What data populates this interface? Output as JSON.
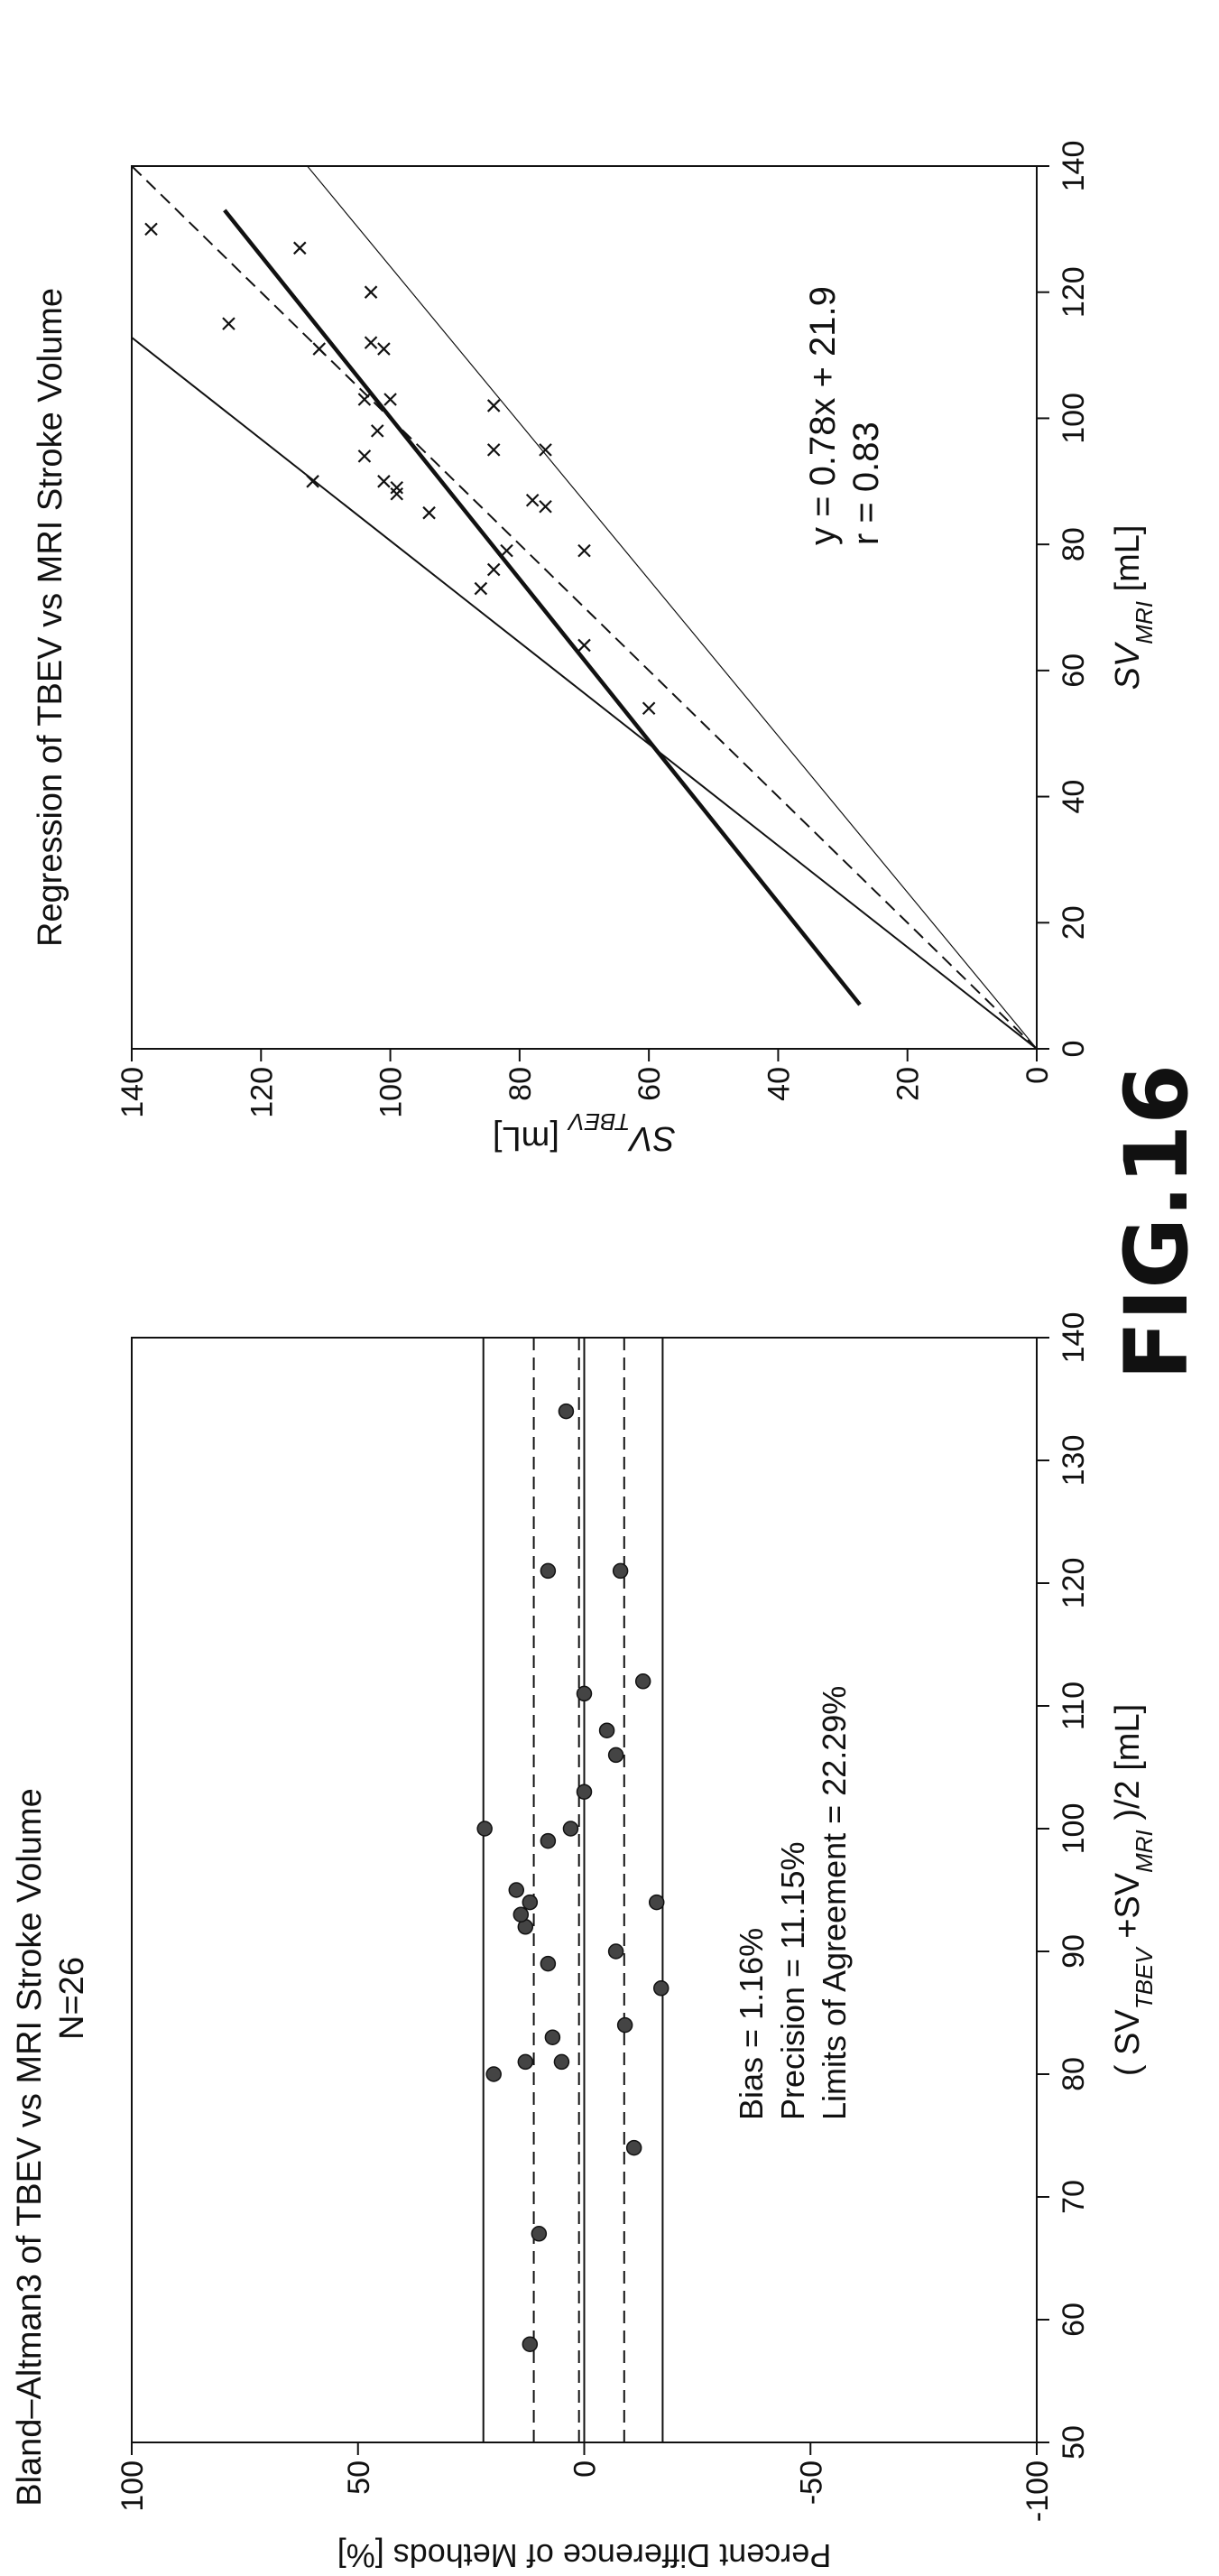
{
  "figure_label": "FIG.16",
  "chart_data": [
    {
      "type": "scatter",
      "title": "Bland–Altman3 of TBEV vs MRI Stroke Volume",
      "subtitle": "N=26",
      "xlabel": "( SV_TBEV +SV_MRI )/2 [mL]",
      "ylabel": "Percent Difference of Methods [%]",
      "xlim": [
        50,
        140
      ],
      "ylim": [
        -100,
        100
      ],
      "xticks": [
        50,
        60,
        70,
        80,
        90,
        100,
        110,
        120,
        130,
        140
      ],
      "yticks": [
        -100,
        -50,
        0,
        50,
        100
      ],
      "grid": false,
      "marker": "filled-circle",
      "points": [
        {
          "x": 58,
          "y": 12
        },
        {
          "x": 67,
          "y": 10
        },
        {
          "x": 74,
          "y": -11
        },
        {
          "x": 80,
          "y": 20
        },
        {
          "x": 81,
          "y": 13
        },
        {
          "x": 81,
          "y": 5
        },
        {
          "x": 83,
          "y": 7
        },
        {
          "x": 84,
          "y": -9
        },
        {
          "x": 87,
          "y": -17
        },
        {
          "x": 89,
          "y": 8
        },
        {
          "x": 90,
          "y": -7
        },
        {
          "x": 92,
          "y": 13
        },
        {
          "x": 93,
          "y": 14
        },
        {
          "x": 94,
          "y": 12
        },
        {
          "x": 94,
          "y": -16
        },
        {
          "x": 95,
          "y": 15
        },
        {
          "x": 99,
          "y": 8
        },
        {
          "x": 100,
          "y": 22
        },
        {
          "x": 100,
          "y": 3
        },
        {
          "x": 103,
          "y": 0
        },
        {
          "x": 106,
          "y": -7
        },
        {
          "x": 108,
          "y": -5
        },
        {
          "x": 111,
          "y": 0
        },
        {
          "x": 112,
          "y": -13
        },
        {
          "x": 121,
          "y": 8
        },
        {
          "x": 121,
          "y": -8
        },
        {
          "x": 134,
          "y": 4
        }
      ],
      "reference_lines": [
        {
          "y": 22.29,
          "style": "solid"
        },
        {
          "y": 11.15,
          "style": "dashed"
        },
        {
          "y": 1.16,
          "style": "dashed"
        },
        {
          "y": 0,
          "style": "solid"
        },
        {
          "y": -8.83,
          "style": "dashed"
        },
        {
          "y": -17.33,
          "style": "solid"
        }
      ],
      "annotations": [
        "Bias = 1.16%",
        "Precision = 11.15%",
        "Limits of Agreement = 22.29%"
      ]
    },
    {
      "type": "scatter",
      "title": "Regression of TBEV vs MRI Stroke Volume",
      "xlabel": "SV_MRI [mL]",
      "ylabel": "SV_TBEV [mL]",
      "xlim": [
        0,
        140
      ],
      "ylim": [
        0,
        140
      ],
      "xticks": [
        0,
        20,
        40,
        60,
        80,
        100,
        120,
        140
      ],
      "yticks": [
        0,
        20,
        40,
        60,
        80,
        100,
        120,
        140
      ],
      "grid": false,
      "marker": "x",
      "points": [
        {
          "x": 54,
          "y": 60
        },
        {
          "x": 64,
          "y": 70
        },
        {
          "x": 73,
          "y": 86
        },
        {
          "x": 76,
          "y": 84
        },
        {
          "x": 79,
          "y": 70
        },
        {
          "x": 79,
          "y": 82
        },
        {
          "x": 85,
          "y": 94
        },
        {
          "x": 86,
          "y": 76
        },
        {
          "x": 87,
          "y": 78
        },
        {
          "x": 88,
          "y": 99
        },
        {
          "x": 89,
          "y": 99
        },
        {
          "x": 90,
          "y": 112
        },
        {
          "x": 90,
          "y": 101
        },
        {
          "x": 94,
          "y": 104
        },
        {
          "x": 95,
          "y": 84
        },
        {
          "x": 95,
          "y": 76
        },
        {
          "x": 98,
          "y": 102
        },
        {
          "x": 102,
          "y": 84
        },
        {
          "x": 103,
          "y": 100
        },
        {
          "x": 103,
          "y": 104
        },
        {
          "x": 111,
          "y": 111
        },
        {
          "x": 111,
          "y": 101
        },
        {
          "x": 112,
          "y": 103
        },
        {
          "x": 115,
          "y": 125
        },
        {
          "x": 120,
          "y": 103
        },
        {
          "x": 127,
          "y": 114
        },
        {
          "x": 130,
          "y": 137
        }
      ],
      "fit": {
        "slope": 0.78,
        "intercept": 21.9,
        "x_range": [
          7,
          133
        ],
        "style": "bold"
      },
      "identity_line": {
        "slope": 1,
        "intercept": 0,
        "style": "dashed"
      },
      "bound_lines": [
        {
          "slope": 1.241,
          "intercept": 0,
          "x_range": [
            0,
            112.8
          ],
          "style": "solid"
        },
        {
          "slope": 0.806,
          "intercept": 0,
          "x_range": [
            0,
            140
          ],
          "style": "thin"
        }
      ],
      "annotations": [
        "y = 0.78x + 21.9",
        "r = 0.83"
      ]
    }
  ]
}
